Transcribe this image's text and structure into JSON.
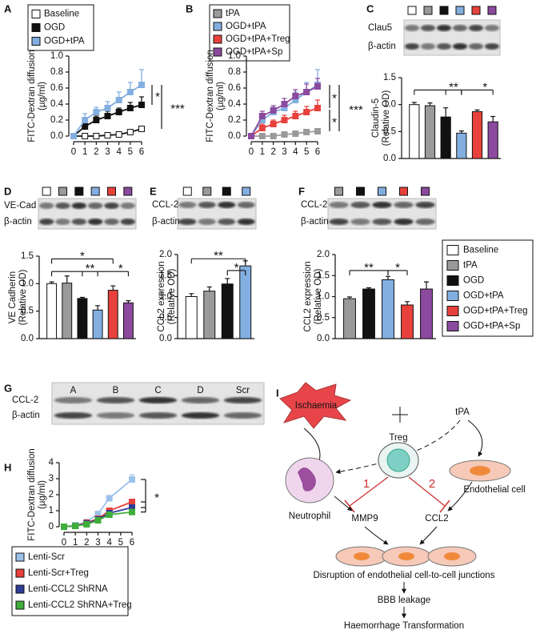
{
  "chart_data": [
    {
      "type": "line",
      "label": "A",
      "ylabel": [
        "FITC-Dextran diffusion",
        "(µg/ml)"
      ],
      "x": [
        0,
        1,
        2,
        3,
        4,
        5,
        6
      ],
      "xlim": [
        0,
        6
      ],
      "xticks": [
        0,
        1,
        2,
        3,
        4,
        5,
        6
      ],
      "ylim": [
        0,
        1
      ],
      "yticks": [
        {
          "value": 0,
          "label": "0.0"
        },
        0.2,
        0.4,
        0.6,
        0.8,
        {
          "value": 1,
          "label": "1.0"
        }
      ],
      "series": [
        {
          "name": "Baseline",
          "color": "#ffffff",
          "values": [
            0,
            0,
            0,
            0.01,
            0.02,
            0.05,
            0.09
          ],
          "errors": [
            0,
            0,
            0,
            0.01,
            0.01,
            0.01,
            0.02
          ]
        },
        {
          "name": "OGD",
          "color": "#111111",
          "values": [
            0,
            0.12,
            0.2,
            0.25,
            0.3,
            0.35,
            0.39
          ],
          "errors": [
            0,
            0.04,
            0.05,
            0.06,
            0.05,
            0.07,
            0.1
          ]
        },
        {
          "name": "OGD+tPA",
          "color": "#82aee0",
          "values": [
            0,
            0.2,
            0.3,
            0.35,
            0.45,
            0.55,
            0.64
          ],
          "errors": [
            0,
            0.08,
            0.06,
            0.08,
            0.1,
            0.12,
            0.19
          ]
        }
      ],
      "annotations": [
        "*",
        "***"
      ]
    },
    {
      "type": "line",
      "label": "B",
      "ylabel": [
        "FITC-Dextran diffusion",
        "(µg/ml)"
      ],
      "x": [
        0,
        1,
        2,
        3,
        4,
        5,
        6
      ],
      "xlim": [
        0,
        6
      ],
      "xticks": [
        0,
        1,
        2,
        3,
        4,
        5,
        6
      ],
      "ylim": [
        0,
        1
      ],
      "yticks": [
        {
          "value": 0,
          "label": "0.0"
        },
        0.2,
        0.4,
        0.6,
        0.8,
        {
          "value": 1,
          "label": "1.0"
        }
      ],
      "series": [
        {
          "name": "tPA",
          "color": "#9a9a9a",
          "values": [
            0,
            0,
            0,
            0.02,
            0.03,
            0.05,
            0.06
          ],
          "errors": [
            0,
            0,
            0,
            0.01,
            0.01,
            0.01,
            0.02
          ]
        },
        {
          "name": "OGD+tPA",
          "color": "#82aee0",
          "values": [
            0,
            0.2,
            0.3,
            0.35,
            0.45,
            0.55,
            0.64
          ],
          "errors": [
            0,
            0.08,
            0.06,
            0.08,
            0.1,
            0.12,
            0.19
          ]
        },
        {
          "name": "OGD+tPA+Treg",
          "color": "#e8413c",
          "values": [
            0,
            0.1,
            0.15,
            0.2,
            0.25,
            0.3,
            0.35
          ],
          "errors": [
            0,
            0.05,
            0.05,
            0.06,
            0.06,
            0.07,
            0.1
          ]
        },
        {
          "name": "OGD+tPA+Sp",
          "color": "#8b4a9e",
          "values": [
            0,
            0.25,
            0.32,
            0.4,
            0.5,
            0.55,
            0.62
          ],
          "errors": [
            0,
            0.06,
            0.06,
            0.07,
            0.08,
            0.1,
            0.1
          ]
        }
      ],
      "annotations": [
        "*",
        "***",
        "*"
      ]
    },
    {
      "type": "bar",
      "ylabel": [
        "Claudin-5",
        "(Relative OD)"
      ],
      "values": [
        1.0,
        0.98,
        0.77,
        0.47,
        0.87,
        0.68
      ],
      "errors": [
        0.04,
        0.05,
        0.17,
        0.04,
        0.03,
        0.1
      ],
      "colors": [
        "#ffffff",
        "#9a9a9a",
        "#111111",
        "#82aee0",
        "#e8413c",
        "#8b4a9e"
      ],
      "ylim": [
        0,
        1.5
      ],
      "yticks": [
        {
          "value": 0,
          "label": "0.0"
        },
        0.5,
        {
          "value": 1,
          "label": "1.0"
        },
        1.5
      ],
      "annotations": [
        "**",
        "*"
      ]
    },
    {
      "type": "bar",
      "ylabel": [
        "VE Cadherin",
        "(Relative OD)"
      ],
      "values": [
        1.0,
        1.01,
        0.73,
        0.52,
        0.88,
        0.65
      ],
      "errors": [
        0.03,
        0.13,
        0.02,
        0.08,
        0.08,
        0.04
      ],
      "colors": [
        "#ffffff",
        "#9a9a9a",
        "#111111",
        "#82aee0",
        "#e8413c",
        "#8b4a9e"
      ],
      "ylim": [
        0,
        1.5
      ],
      "yticks": [
        {
          "value": 0,
          "label": "0.0"
        },
        0.5,
        {
          "value": 1,
          "label": "1.0"
        },
        1.5
      ],
      "annotations": [
        "*",
        "**",
        "*"
      ]
    },
    {
      "type": "bar",
      "ylabel": [
        "CCL2 expression",
        "(Relative OD)"
      ],
      "values": [
        1.0,
        1.13,
        1.3,
        1.73
      ],
      "errors": [
        0.07,
        0.1,
        0.13,
        0.12
      ],
      "colors": [
        "#ffffff",
        "#9a9a9a",
        "#111111",
        "#82aee0"
      ],
      "ylim": [
        0,
        2
      ],
      "yticks": [
        {
          "value": 0,
          "label": "0.0"
        },
        0.5,
        {
          "value": 1,
          "label": "1.0"
        },
        1.5,
        {
          "value": 2,
          "label": "2.0"
        }
      ],
      "annotations": [
        "**",
        "*"
      ]
    },
    {
      "type": "bar",
      "ylabel": [
        "CCL2 expression",
        "(Relative OD)"
      ],
      "values": [
        0.95,
        1.18,
        1.4,
        0.8,
        1.18
      ],
      "errors": [
        0.04,
        0.03,
        0.08,
        0.08,
        0.17
      ],
      "colors": [
        "#9a9a9a",
        "#111111",
        "#82aee0",
        "#e8413c",
        "#8b4a9e"
      ],
      "ylim": [
        0,
        2
      ],
      "yticks": [
        {
          "value": 0,
          "label": "0.0"
        },
        0.5,
        {
          "value": 1,
          "label": "1.0"
        },
        1.5,
        {
          "value": 2,
          "label": "2.0"
        }
      ],
      "annotations": [
        "**",
        "*"
      ]
    },
    {
      "type": "line",
      "label": "H",
      "ylabel": [
        "FITC-Dextran diffusion",
        "(µg/ml)"
      ],
      "x": [
        0,
        1,
        2,
        3,
        4,
        6
      ],
      "xlim": [
        0,
        6
      ],
      "xticks": [
        0,
        1,
        2,
        3,
        4,
        5,
        6
      ],
      "ylim": [
        0,
        4
      ],
      "yticks": [
        0,
        1,
        2,
        3,
        4
      ],
      "series": [
        {
          "name": "Lenti-Scr",
          "color": "#9cc2ea",
          "values": [
            0,
            0.1,
            0.3,
            0.8,
            1.78,
            2.95
          ],
          "errors": [
            0,
            0.05,
            0.08,
            0.1,
            0.1,
            0.3
          ]
        },
        {
          "name": "Lenti-Scr+Treg",
          "color": "#e8413c",
          "values": [
            0,
            0.05,
            0.25,
            0.5,
            1.0,
            1.55
          ],
          "errors": [
            0,
            0.04,
            0.05,
            0.05,
            0.06,
            0.08
          ]
        },
        {
          "name": "Lenti-CCL2 ShRNA",
          "color": "#2d3d98",
          "values": [
            0,
            0.05,
            0.2,
            0.45,
            0.85,
            1.2
          ],
          "errors": [
            0,
            0.04,
            0.05,
            0.05,
            0.06,
            0.06
          ]
        },
        {
          "name": "Lenti-CCL2 ShRNA+Treg",
          "color": "#3fae3a",
          "values": [
            0,
            0.05,
            0.15,
            0.4,
            0.75,
            0.92
          ],
          "errors": [
            0,
            0.03,
            0.04,
            0.05,
            0.05,
            0.06
          ]
        }
      ],
      "annotations": [
        "*"
      ]
    }
  ],
  "blots": [
    {
      "label": "C",
      "rows": [
        "Clau5",
        "β-actin"
      ]
    },
    {
      "label": "D",
      "rows": [
        "VE-Cad",
        "β-actin"
      ]
    },
    {
      "label": "E",
      "rows": [
        "CCL-2",
        "β-actin"
      ]
    },
    {
      "label": "F",
      "rows": [
        "CCL-2",
        "β-actin"
      ]
    },
    {
      "label": "G",
      "rows": [
        "CCL-2",
        "β-actin"
      ],
      "lanes": [
        "A",
        "B",
        "C",
        "D",
        "Scr"
      ]
    }
  ],
  "legend": {
    "items": [
      {
        "name": "Baseline",
        "color": "#ffffff"
      },
      {
        "name": "tPA",
        "color": "#9a9a9a"
      },
      {
        "name": "OGD",
        "color": "#111111"
      },
      {
        "name": "OGD+tPA",
        "color": "#82aee0"
      },
      {
        "name": "OGD+tPA+Treg",
        "color": "#e8413c"
      },
      {
        "name": "OGD+tPA+Sp",
        "color": "#8b4a9e"
      }
    ]
  },
  "diagram": {
    "label": "I",
    "nodes": [
      "Ischaemia",
      "tPA",
      "Treg",
      "Neutrophil",
      "Endothelial cell",
      "MMP9",
      "CCL2",
      "Disruption of endothelial cell-to-cell junctions",
      "BBB leakage",
      "Haemorrhage Transformation"
    ],
    "pathways": [
      "1",
      "2"
    ]
  }
}
